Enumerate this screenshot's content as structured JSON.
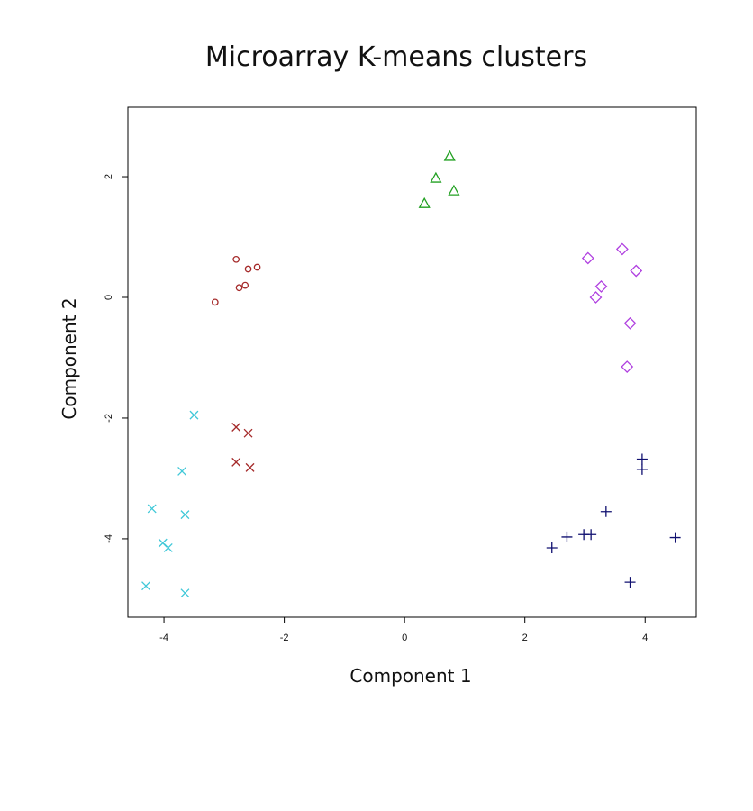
{
  "chart_data": {
    "type": "scatter",
    "title": "Microarray K-means clusters",
    "xlabel": "Component 1",
    "ylabel": "Component 2",
    "xlim": [
      -4.6,
      4.85
    ],
    "ylim": [
      -5.3,
      3.15
    ],
    "xticks": [
      -4,
      -2,
      0,
      2,
      4
    ],
    "yticks": [
      -4,
      -2,
      0,
      2
    ],
    "grid": false,
    "legend": "none",
    "series": [
      {
        "marker": "circle",
        "color": "#a52a2a",
        "points": [
          [
            -2.8,
            0.63
          ],
          [
            -2.6,
            0.47
          ],
          [
            -2.45,
            0.5
          ],
          [
            -2.75,
            0.16
          ],
          [
            -2.65,
            0.2
          ],
          [
            -3.15,
            -0.08
          ]
        ]
      },
      {
        "marker": "x",
        "color": "#a52a2a",
        "points": [
          [
            -2.8,
            -2.15
          ],
          [
            -2.6,
            -2.25
          ],
          [
            -2.8,
            -2.73
          ],
          [
            -2.57,
            -2.82
          ]
        ]
      },
      {
        "marker": "x",
        "color": "#40c8d8",
        "points": [
          [
            -3.5,
            -1.95
          ],
          [
            -3.7,
            -2.88
          ],
          [
            -4.2,
            -3.5
          ],
          [
            -3.65,
            -3.6
          ],
          [
            -4.02,
            -4.07
          ],
          [
            -3.93,
            -4.15
          ],
          [
            -4.3,
            -4.78
          ],
          [
            -3.65,
            -4.9
          ]
        ]
      },
      {
        "marker": "triangle",
        "color": "#22a022",
        "points": [
          [
            0.75,
            2.33
          ],
          [
            0.52,
            1.97
          ],
          [
            0.82,
            1.76
          ],
          [
            0.33,
            1.55
          ]
        ]
      },
      {
        "marker": "diamond",
        "color": "#b040e0",
        "points": [
          [
            3.05,
            0.65
          ],
          [
            3.62,
            0.8
          ],
          [
            3.85,
            0.44
          ],
          [
            3.27,
            0.18
          ],
          [
            3.18,
            0.0
          ],
          [
            3.75,
            -0.43
          ],
          [
            3.7,
            -1.15
          ]
        ]
      },
      {
        "marker": "plus",
        "color": "#101070",
        "points": [
          [
            3.95,
            -2.68
          ],
          [
            3.95,
            -2.85
          ],
          [
            3.35,
            -3.55
          ],
          [
            2.45,
            -4.15
          ],
          [
            2.7,
            -3.97
          ],
          [
            2.98,
            -3.93
          ],
          [
            3.1,
            -3.93
          ],
          [
            4.5,
            -3.98
          ],
          [
            3.75,
            -4.72
          ]
        ]
      }
    ]
  }
}
